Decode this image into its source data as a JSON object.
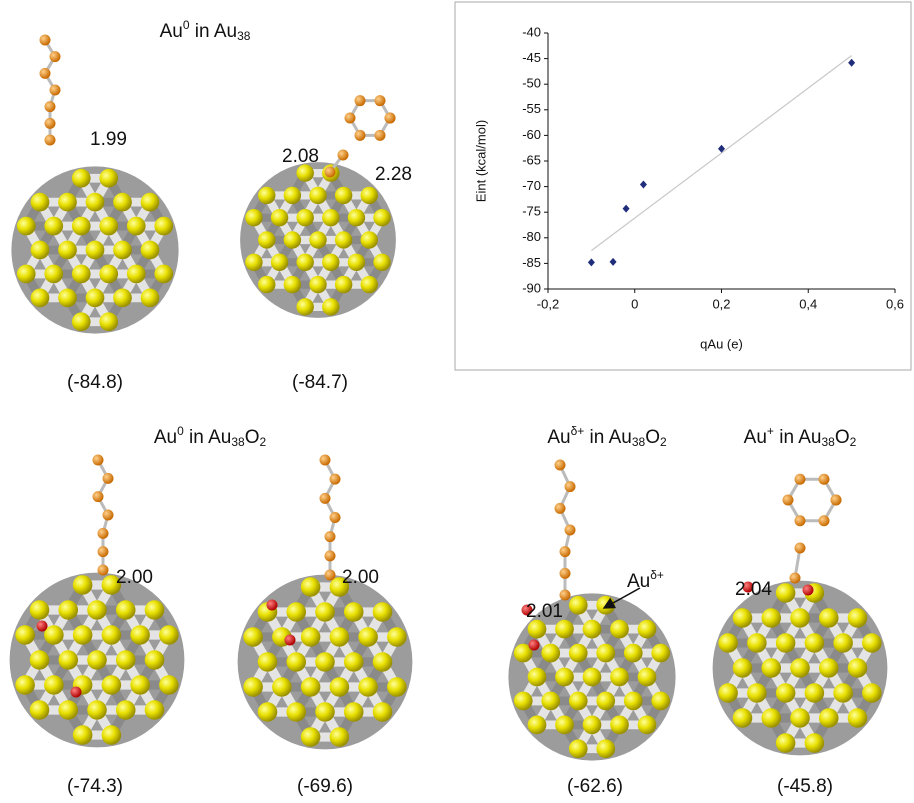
{
  "chart_data": {
    "type": "scatter",
    "x_label": "qAu (e)",
    "y_label": "Eint (kcal/mol)",
    "x": [
      -0.1,
      -0.05,
      -0.02,
      0.02,
      0.2,
      0.5
    ],
    "values": [
      -84.8,
      -84.7,
      -74.3,
      -69.6,
      -62.6,
      -45.8
    ],
    "color": "#1f2d7a",
    "trend_line": {
      "x": [
        -0.1,
        0.5
      ],
      "values": [
        -82.5,
        -44.4
      ],
      "color": "#c8c8c8"
    },
    "xlim": [
      -0.2,
      0.6
    ],
    "ylim": [
      -90,
      -40
    ],
    "xticks": [
      {
        "value": -0.2,
        "label": "-0,2"
      },
      0,
      {
        "value": 0.2,
        "label": "0,2"
      },
      {
        "value": 0.4,
        "label": "0,4"
      },
      {
        "value": 0.6,
        "label": "0,6"
      }
    ],
    "yticks": [
      -90,
      -85,
      -80,
      -75,
      -70,
      -65,
      -60,
      -55,
      -50,
      -45,
      -40
    ]
  },
  "structures": {
    "titles": [
      [
        "Au",
        "0",
        " in Au",
        "38"
      ],
      [
        "Au",
        "0",
        " in Au",
        "38",
        "O",
        "2"
      ],
      [
        "Au",
        "δ+",
        " in Au",
        "38",
        "O",
        "2"
      ],
      [
        "Au",
        "+",
        " in Au",
        "38",
        "O",
        "2"
      ]
    ],
    "energies": [
      "(-84.8)",
      "(-84.7)",
      "(-74.3)",
      "(-69.6)",
      "(-62.6)",
      "(-45.8)"
    ],
    "distances": [
      "1.99",
      "2.08",
      "2.28",
      "2.00",
      "2.00",
      "2.01",
      "2.04"
    ],
    "annotation": [
      "Au",
      "δ+"
    ]
  }
}
